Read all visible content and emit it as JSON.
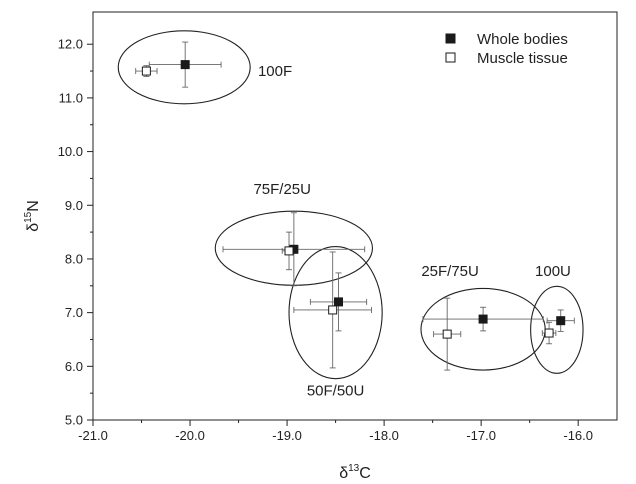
{
  "chart_data": {
    "type": "scatter",
    "xlabel": "δ13C",
    "ylabel": "δ15N",
    "xlabel_parts": {
      "prefix": "δ",
      "sup": "13",
      "main": "C"
    },
    "ylabel_parts": {
      "prefix": "δ",
      "sup": "15",
      "main": "N"
    },
    "xlim": [
      -21.0,
      -15.6
    ],
    "ylim": [
      5.0,
      12.6
    ],
    "xticks": [
      -21.0,
      -20.0,
      -19.0,
      -18.0,
      -17.0,
      -16.0
    ],
    "yticks": [
      5.0,
      6.0,
      7.0,
      8.0,
      9.0,
      10.0,
      11.0,
      12.0
    ],
    "xtick_labels": [
      "-21.0",
      "-20.0",
      "-19.0",
      "-18.0",
      "-17.0",
      "-16.0"
    ],
    "ytick_labels": [
      "5.0",
      "6.0",
      "7.0",
      "8.0",
      "9.0",
      "10.0",
      "11.0",
      "12.0"
    ],
    "grid": false,
    "legend_position": "top-right",
    "series": [
      {
        "name": "Whole bodies",
        "marker": "filled-square",
        "color": "#1a1a1a",
        "points": [
          {
            "x": -20.05,
            "y": 11.62,
            "xerr": 0.37,
            "yerr": 0.42
          },
          {
            "x": -18.93,
            "y": 8.18,
            "xerr": 0.73,
            "yerr": 0.68
          },
          {
            "x": -18.47,
            "y": 7.2,
            "xerr": 0.29,
            "yerr": 0.54
          },
          {
            "x": -16.98,
            "y": 6.88,
            "xerr": 0.62,
            "yerr": 0.22
          },
          {
            "x": -16.18,
            "y": 6.85,
            "xerr": 0.14,
            "yerr": 0.2
          }
        ]
      },
      {
        "name": "Muscle tissue",
        "marker": "open-square",
        "color": "#1a1a1a",
        "points": [
          {
            "x": -20.45,
            "y": 11.5,
            "xerr": 0.11,
            "yerr": 0.1
          },
          {
            "x": -18.98,
            "y": 8.15,
            "xerr": 0.07,
            "yerr": 0.35
          },
          {
            "x": -18.53,
            "y": 7.05,
            "xerr": 0.4,
            "yerr": 1.08
          },
          {
            "x": -17.35,
            "y": 6.6,
            "xerr": 0.14,
            "yerr": 0.67
          },
          {
            "x": -16.3,
            "y": 6.62,
            "xerr": 0.07,
            "yerr": 0.2
          }
        ]
      }
    ],
    "groups": [
      {
        "label": "100F",
        "ellipse": {
          "cx": -20.06,
          "cy": 11.57,
          "rx": 0.68,
          "ry": 0.68
        },
        "label_anchor": {
          "x": -19.3,
          "y": 11.5
        }
      },
      {
        "label": "75F/25U",
        "ellipse": {
          "cx": -18.93,
          "cy": 8.2,
          "rx": 0.81,
          "ry": 0.69
        },
        "label_anchor": {
          "x": -19.05,
          "y": 9.3
        }
      },
      {
        "label": "50F/50U",
        "ellipse": {
          "cx": -18.5,
          "cy": 7.0,
          "rx": 0.48,
          "ry": 1.23
        },
        "label_anchor": {
          "x": -18.5,
          "y": 5.55
        }
      },
      {
        "label": "25F/75U",
        "ellipse": {
          "cx": -16.98,
          "cy": 6.69,
          "rx": 0.64,
          "ry": 0.76
        },
        "label_anchor": {
          "x": -17.32,
          "y": 7.78
        }
      },
      {
        "label": "100U",
        "ellipse": {
          "cx": -16.22,
          "cy": 6.68,
          "rx": 0.27,
          "ry": 0.81
        },
        "label_anchor": {
          "x": -16.26,
          "y": 7.78
        }
      }
    ]
  }
}
